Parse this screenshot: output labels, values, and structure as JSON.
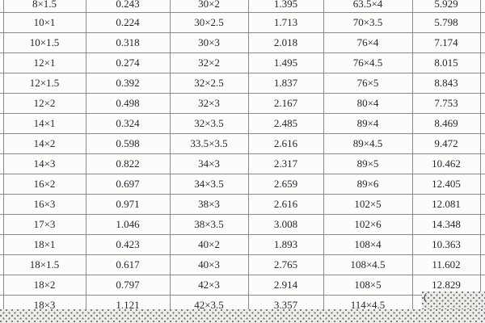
{
  "colors": {
    "page_background": "#ffffff",
    "border": "#8a8a8a",
    "cell_background": "#fcfcfa",
    "text": "#26262a",
    "dither_background": "#ebebe8",
    "dither_dot": "#6e6e6e"
  },
  "obscured_glyph": "(",
  "chart_data": {
    "type": "table",
    "rows": [
      [
        "8×1.5",
        "0.243",
        "30×2",
        "1.395",
        "63.5×4",
        "5.929"
      ],
      [
        "10×1",
        "0.224",
        "30×2.5",
        "1.713",
        "70×3.5",
        "5.798"
      ],
      [
        "10×1.5",
        "0.318",
        "30×3",
        "2.018",
        "76×4",
        "7.174"
      ],
      [
        "12×1",
        "0.274",
        "32×2",
        "1.495",
        "76×4.5",
        "8.015"
      ],
      [
        "12×1.5",
        "0.392",
        "32×2.5",
        "1.837",
        "76×5",
        "8.843"
      ],
      [
        "12×2",
        "0.498",
        "32×3",
        "2.167",
        "80×4",
        "7.753"
      ],
      [
        "14×1",
        "0.324",
        "32×3.5",
        "2.485",
        "89×4",
        "8.469"
      ],
      [
        "14×2",
        "0.598",
        "33.5×3.5",
        "2.616",
        "89×4.5",
        "9.472"
      ],
      [
        "14×3",
        "0.822",
        "34×3",
        "2.317",
        "89×5",
        "10.462"
      ],
      [
        "16×2",
        "0.697",
        "34×3.5",
        "2.659",
        "89×6",
        "12.405"
      ],
      [
        "16×3",
        "0.971",
        "38×3",
        "2.616",
        "102×5",
        "12.081"
      ],
      [
        "17×3",
        "1.046",
        "38×3.5",
        "3.008",
        "102×6",
        "14.348"
      ],
      [
        "18×1",
        "0.423",
        "40×2",
        "1.893",
        "108×4",
        "10.363"
      ],
      [
        "18×1.5",
        "0.617",
        "40×3",
        "2.765",
        "108×4.5",
        "11.602"
      ],
      [
        "18×2",
        "0.797",
        "42×3",
        "2.914",
        "108×5",
        "12.829"
      ],
      [
        "18×3",
        "1.121",
        "42×3.5",
        "3.357",
        "114×4.5",
        ""
      ]
    ]
  }
}
